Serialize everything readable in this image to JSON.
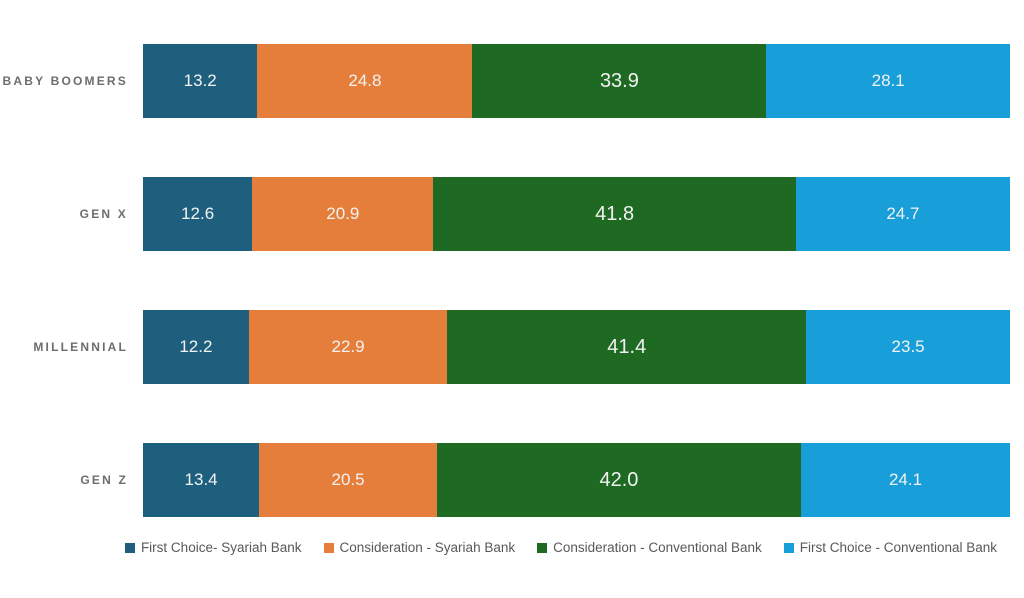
{
  "chart_data": {
    "type": "bar",
    "orientation": "horizontal",
    "stacked": true,
    "title": "",
    "xlabel": "",
    "ylabel": "",
    "xlim": [
      0,
      100
    ],
    "grid": false,
    "legend_position": "bottom",
    "value_label_decimals": 1,
    "value_label_size_px": [
      17,
      17,
      20,
      17
    ],
    "categories": [
      "BABY BOOMERS",
      "GEN X",
      "MILLENNIAL",
      "GEN Z"
    ],
    "series": [
      {
        "name": "First Choice- Syariah Bank",
        "color": "#1F5F7E",
        "values": [
          13.2,
          12.6,
          12.2,
          13.4
        ]
      },
      {
        "name": "Consideration - Syariah Bank",
        "color": "#E57E3B",
        "values": [
          24.8,
          20.9,
          22.9,
          20.5
        ]
      },
      {
        "name": "Consideration - Conventional  Bank",
        "color": "#1F6A23",
        "values": [
          33.9,
          41.8,
          41.4,
          42.0
        ]
      },
      {
        "name": "First Choice - Conventional Bank",
        "color": "#189FDA",
        "values": [
          28.1,
          24.7,
          23.5,
          24.1
        ]
      }
    ]
  },
  "styles": {
    "background": "#ffffff",
    "category_label_color": "#6d6d6d",
    "value_label_color": "#f2f2f2",
    "legend_text_color": "#595959"
  }
}
